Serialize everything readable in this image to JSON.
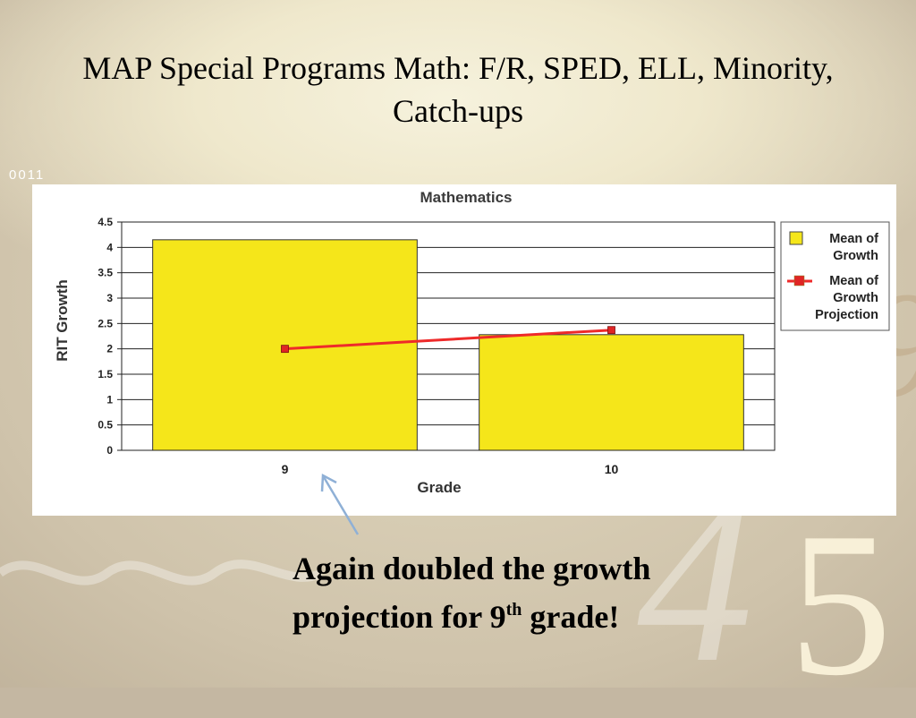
{
  "slide": {
    "title": "MAP Special Programs Math:  F/R, SPED, ELL, Minority, Catch-ups",
    "deco_digits": "0011",
    "deco_numbers": [
      "4",
      "5"
    ],
    "caption_line1": "Again doubled the growth",
    "caption_line2_pre": "projection for 9",
    "caption_sup": "th",
    "caption_line2_post": " grade!"
  },
  "chart_data": {
    "type": "bar",
    "title": "Mathematics",
    "xlabel": "Grade",
    "ylabel": "RIT Growth",
    "categories": [
      "9",
      "10"
    ],
    "ylim": [
      0,
      4.5
    ],
    "yticks": [
      "0",
      "0.5",
      "1",
      "1.5",
      "2",
      "2.5",
      "3",
      "3.5",
      "4",
      "4.5"
    ],
    "grid": true,
    "legend_position": "right",
    "series": [
      {
        "name": "Mean of Growth",
        "kind": "bar",
        "color": "#f5e61a",
        "values": [
          4.15,
          2.28
        ]
      },
      {
        "name": "Mean of Growth Projection",
        "kind": "line",
        "color": "#ee2a2a",
        "values": [
          2.0,
          2.37
        ]
      }
    ]
  },
  "colors": {
    "bar_fill": "#f5e61a",
    "line": "#ee2a2a",
    "arrow": "#8fb0d6",
    "chart_title": "#3a3a3a"
  }
}
